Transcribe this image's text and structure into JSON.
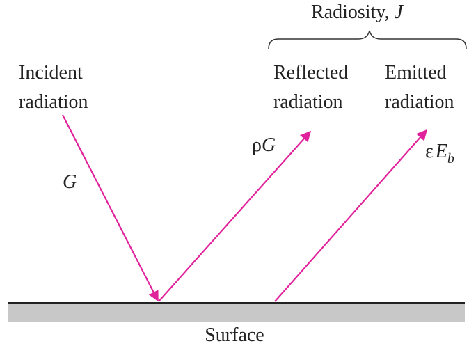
{
  "radiosity": {
    "text": "Radiosity,",
    "symbol": "J"
  },
  "incident": {
    "lines": [
      "Incident",
      "radiation"
    ],
    "symbol": "G"
  },
  "reflected": {
    "lines": [
      "Reflected",
      "radiation"
    ],
    "symbol": [
      "ρ",
      "G"
    ]
  },
  "emitted": {
    "lines": [
      "Emitted",
      "radiation"
    ],
    "symbol": [
      "ε",
      "E",
      "b"
    ]
  },
  "surface": "Surface"
}
